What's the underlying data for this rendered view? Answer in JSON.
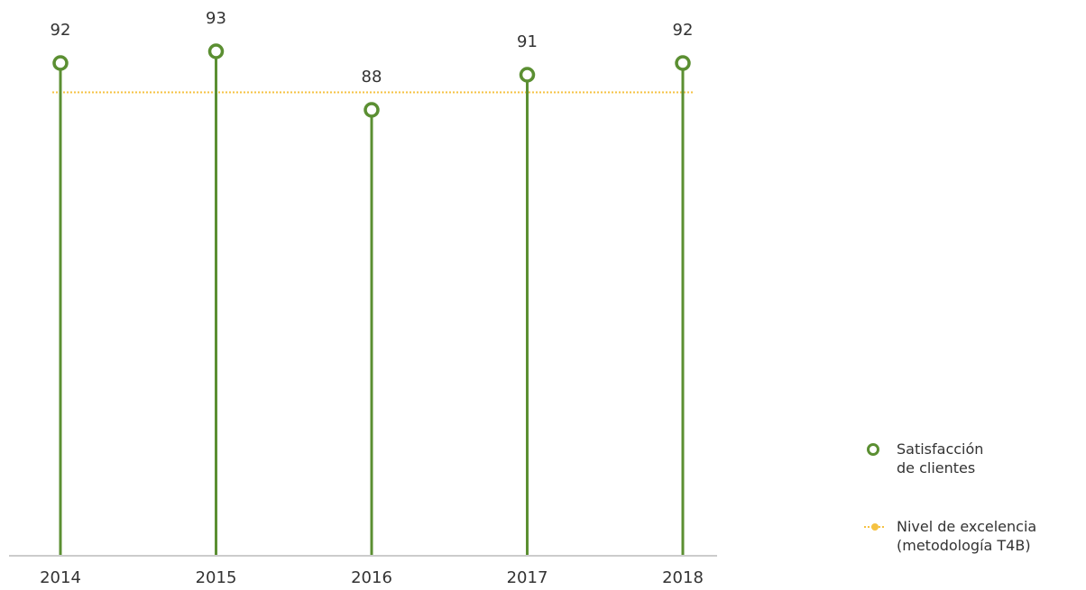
{
  "chart_data": {
    "type": "lollipop",
    "categories": [
      "2014",
      "2015",
      "2016",
      "2017",
      "2018"
    ],
    "series": [
      {
        "name": "Satisfacción de clientes",
        "color": "#5b8f32",
        "values": [
          92,
          93,
          88,
          91,
          92
        ]
      }
    ],
    "reference_line": {
      "name": "Nivel de excelencia (metodología T4B)",
      "value": 89.5,
      "color": "#f5c242"
    },
    "ylim": [
      50,
      97
    ]
  }
}
